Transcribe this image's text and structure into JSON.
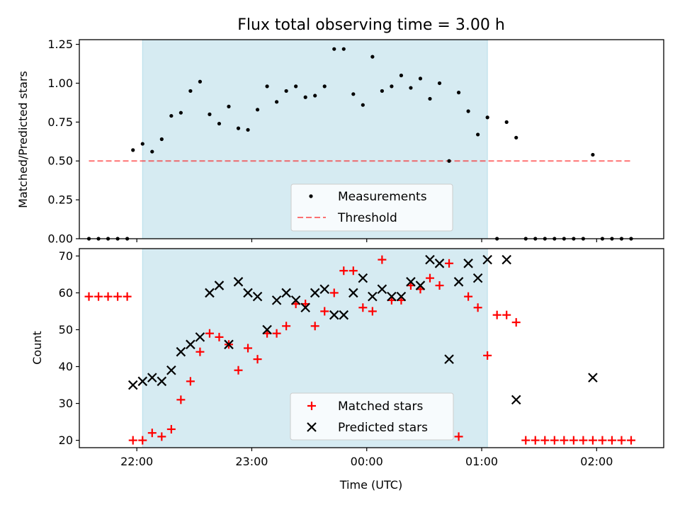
{
  "title": "Flux total observing time = 3.00 h",
  "colors": {
    "span": "#add8e6",
    "measurements": "#000000",
    "threshold": "#ff0000",
    "matched": "#ff0000",
    "predicted": "#000000"
  },
  "chart_data": [
    {
      "type": "scatter",
      "ylabel": "Matched/Predicted stars",
      "xlabel": "",
      "ylim": [
        0,
        1.28
      ],
      "xlim": [
        "21:30",
        "02:35"
      ],
      "yticks": [
        0.0,
        0.25,
        0.5,
        0.75,
        1.0,
        1.25
      ],
      "ytick_labels": [
        "0.00",
        "0.25",
        "0.50",
        "0.75",
        "1.00",
        "1.25"
      ],
      "shaded_span": [
        "22:03",
        "01:03"
      ],
      "legend": {
        "position": "lower center",
        "entries": [
          "Measurements",
          "Threshold"
        ]
      },
      "series": [
        {
          "name": "Measurements",
          "kind": "scatter",
          "marker": "dot",
          "points": [
            [
              "21:35",
              0.0
            ],
            [
              "21:40",
              0.0
            ],
            [
              "21:45",
              0.0
            ],
            [
              "21:50",
              0.0
            ],
            [
              "21:55",
              0.0
            ],
            [
              "21:58",
              0.57
            ],
            [
              "22:03",
              0.61
            ],
            [
              "22:08",
              0.56
            ],
            [
              "22:13",
              0.64
            ],
            [
              "22:18",
              0.79
            ],
            [
              "22:23",
              0.81
            ],
            [
              "22:28",
              0.95
            ],
            [
              "22:33",
              1.01
            ],
            [
              "22:38",
              0.8
            ],
            [
              "22:43",
              0.74
            ],
            [
              "22:48",
              0.85
            ],
            [
              "22:53",
              0.71
            ],
            [
              "22:58",
              0.7
            ],
            [
              "23:03",
              0.83
            ],
            [
              "23:08",
              0.98
            ],
            [
              "23:13",
              0.88
            ],
            [
              "23:18",
              0.95
            ],
            [
              "23:23",
              0.98
            ],
            [
              "23:28",
              0.91
            ],
            [
              "23:33",
              0.92
            ],
            [
              "23:38",
              0.98
            ],
            [
              "23:43",
              1.22
            ],
            [
              "23:48",
              1.22
            ],
            [
              "23:53",
              0.93
            ],
            [
              "23:58",
              0.86
            ],
            [
              "00:03",
              1.17
            ],
            [
              "00:08",
              0.95
            ],
            [
              "00:13",
              0.98
            ],
            [
              "00:18",
              1.05
            ],
            [
              "00:23",
              0.97
            ],
            [
              "00:28",
              1.03
            ],
            [
              "00:33",
              0.9
            ],
            [
              "00:38",
              1.0
            ],
            [
              "00:43",
              0.5
            ],
            [
              "00:48",
              0.94
            ],
            [
              "00:53",
              0.82
            ],
            [
              "00:58",
              0.67
            ],
            [
              "01:03",
              0.78
            ],
            [
              "01:08",
              0.0
            ],
            [
              "01:13",
              0.75
            ],
            [
              "01:18",
              0.65
            ],
            [
              "01:23",
              0.0
            ],
            [
              "01:28",
              0.0
            ],
            [
              "01:33",
              0.0
            ],
            [
              "01:38",
              0.0
            ],
            [
              "01:43",
              0.0
            ],
            [
              "01:48",
              0.0
            ],
            [
              "01:53",
              0.0
            ],
            [
              "01:58",
              0.54
            ],
            [
              "02:03",
              0.0
            ],
            [
              "02:08",
              0.0
            ],
            [
              "02:13",
              0.0
            ],
            [
              "02:18",
              0.0
            ]
          ]
        },
        {
          "name": "Threshold",
          "kind": "line",
          "style": "dashed",
          "points": [
            [
              "21:35",
              0.5
            ],
            [
              "02:18",
              0.5
            ]
          ]
        }
      ]
    },
    {
      "type": "scatter",
      "ylabel": "Count",
      "xlabel": "Time (UTC)",
      "ylim": [
        18,
        72
      ],
      "xlim": [
        "21:30",
        "02:35"
      ],
      "yticks": [
        20,
        30,
        40,
        50,
        60,
        70
      ],
      "ytick_labels": [
        "20",
        "30",
        "40",
        "50",
        "60",
        "70"
      ],
      "xticks": [
        "22:00",
        "23:00",
        "00:00",
        "01:00",
        "02:00"
      ],
      "xtick_labels": [
        "22:00",
        "23:00",
        "00:00",
        "01:00",
        "02:00"
      ],
      "shaded_span": [
        "22:03",
        "01:03"
      ],
      "legend": {
        "position": "lower center",
        "entries": [
          "Matched stars",
          "Predicted stars"
        ]
      },
      "series": [
        {
          "name": "Matched stars",
          "marker": "plus",
          "points": [
            [
              "21:35",
              59
            ],
            [
              "21:40",
              59
            ],
            [
              "21:45",
              59
            ],
            [
              "21:50",
              59
            ],
            [
              "21:55",
              59
            ],
            [
              "21:58",
              20
            ],
            [
              "22:03",
              20
            ],
            [
              "22:08",
              22
            ],
            [
              "22:13",
              21
            ],
            [
              "22:18",
              23
            ],
            [
              "22:23",
              31
            ],
            [
              "22:28",
              36
            ],
            [
              "22:33",
              44
            ],
            [
              "22:38",
              49
            ],
            [
              "22:43",
              48
            ],
            [
              "22:48",
              46
            ],
            [
              "22:53",
              39
            ],
            [
              "22:58",
              45
            ],
            [
              "23:03",
              42
            ],
            [
              "23:08",
              49
            ],
            [
              "23:13",
              49
            ],
            [
              "23:18",
              51
            ],
            [
              "23:23",
              57
            ],
            [
              "23:28",
              57
            ],
            [
              "23:33",
              51
            ],
            [
              "23:38",
              55
            ],
            [
              "23:43",
              60
            ],
            [
              "23:48",
              66
            ],
            [
              "23:53",
              66
            ],
            [
              "23:58",
              56
            ],
            [
              "00:03",
              55
            ],
            [
              "00:08",
              69
            ],
            [
              "00:13",
              58
            ],
            [
              "00:18",
              58
            ],
            [
              "00:23",
              62
            ],
            [
              "00:28",
              61
            ],
            [
              "00:33",
              64
            ],
            [
              "00:38",
              62
            ],
            [
              "00:43",
              68
            ],
            [
              "00:48",
              21
            ],
            [
              "00:53",
              59
            ],
            [
              "00:58",
              56
            ],
            [
              "01:03",
              43
            ],
            [
              "01:08",
              54
            ],
            [
              "01:13",
              54
            ],
            [
              "01:18",
              52
            ],
            [
              "01:23",
              20
            ],
            [
              "01:28",
              20
            ],
            [
              "01:33",
              20
            ],
            [
              "01:38",
              20
            ],
            [
              "01:43",
              20
            ],
            [
              "01:48",
              20
            ],
            [
              "01:53",
              20
            ],
            [
              "01:58",
              20
            ],
            [
              "02:03",
              20
            ],
            [
              "02:08",
              20
            ],
            [
              "02:13",
              20
            ],
            [
              "02:18",
              20
            ]
          ]
        },
        {
          "name": "Predicted stars",
          "marker": "x",
          "points": [
            [
              "21:58",
              35
            ],
            [
              "22:03",
              36
            ],
            [
              "22:08",
              37
            ],
            [
              "22:13",
              36
            ],
            [
              "22:18",
              39
            ],
            [
              "22:23",
              44
            ],
            [
              "22:28",
              46
            ],
            [
              "22:33",
              48
            ],
            [
              "22:38",
              60
            ],
            [
              "22:43",
              62
            ],
            [
              "22:48",
              46
            ],
            [
              "22:53",
              63
            ],
            [
              "22:58",
              60
            ],
            [
              "23:03",
              59
            ],
            [
              "23:08",
              50
            ],
            [
              "23:13",
              58
            ],
            [
              "23:18",
              60
            ],
            [
              "23:23",
              58
            ],
            [
              "23:28",
              56
            ],
            [
              "23:33",
              60
            ],
            [
              "23:38",
              61
            ],
            [
              "23:43",
              54
            ],
            [
              "23:48",
              54
            ],
            [
              "23:53",
              60
            ],
            [
              "23:58",
              64
            ],
            [
              "00:03",
              59
            ],
            [
              "00:08",
              61
            ],
            [
              "00:13",
              59
            ],
            [
              "00:18",
              59
            ],
            [
              "00:23",
              63
            ],
            [
              "00:28",
              62
            ],
            [
              "00:33",
              69
            ],
            [
              "00:38",
              68
            ],
            [
              "00:43",
              42
            ],
            [
              "00:48",
              63
            ],
            [
              "00:53",
              68
            ],
            [
              "00:58",
              64
            ],
            [
              "01:03",
              69
            ],
            [
              "01:13",
              69
            ],
            [
              "01:18",
              31
            ],
            [
              "01:58",
              37
            ]
          ]
        }
      ]
    }
  ]
}
